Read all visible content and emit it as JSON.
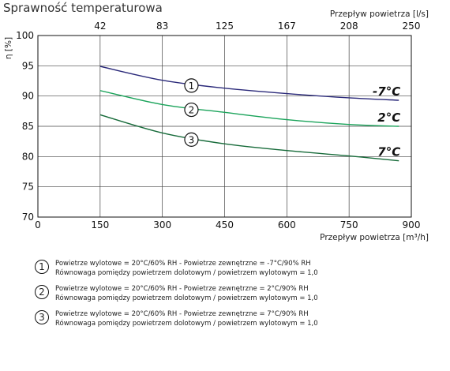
{
  "chart_data": {
    "type": "line",
    "title": "Sprawność temperaturowa",
    "ylabel": "η [%]",
    "xlabel": "Przepływ powietrza [m³/h]",
    "x2label": "Przepływ powietrza [l/s]",
    "xlim": [
      0,
      900
    ],
    "ylim": [
      70,
      100
    ],
    "x_ticks": [
      "0",
      "150",
      "300",
      "450",
      "600",
      "750",
      "900"
    ],
    "y_ticks": [
      "70",
      "75",
      "80",
      "85",
      "90",
      "95",
      "100"
    ],
    "x2_ticks": [
      "42",
      "83",
      "125",
      "167",
      "208",
      "250"
    ],
    "grid": true,
    "series": [
      {
        "name": "-7°C",
        "marker": "1",
        "color": "#2b2a7a",
        "x": [
          150,
          300,
          450,
          600,
          750,
          870
        ],
        "y": [
          94.9,
          92.6,
          91.3,
          90.4,
          89.7,
          89.3
        ]
      },
      {
        "name": "2°C",
        "marker": "2",
        "color": "#1aa35a",
        "x": [
          150,
          300,
          450,
          600,
          750,
          870
        ],
        "y": [
          90.9,
          88.6,
          87.3,
          86.1,
          85.3,
          85.0
        ]
      },
      {
        "name": "7°C",
        "marker": "3",
        "color": "#176b3a",
        "x": [
          150,
          300,
          450,
          600,
          750,
          870
        ],
        "y": [
          86.9,
          83.9,
          82.1,
          81.0,
          80.1,
          79.3
        ]
      }
    ]
  },
  "legend": [
    {
      "num": "1",
      "line1": "Powietrze wylotowe = 20°C/60% RH - Powietrze zewnętrzne = -7°C/90% RH",
      "line2": "Równowaga pomiędzy powietrzem dolotowym / powietrzem wylotowym = 1,0"
    },
    {
      "num": "2",
      "line1": "Powietrze wylotowe = 20°C/60% RH - Powietrze zewnętrzne = 2°C/90% RH",
      "line2": "Równowaga pomiędzy powietrzem dolotowym / powietrzem wylotowym = 1,0"
    },
    {
      "num": "3",
      "line1": "Powietrze wylotowe = 20°C/60% RH - Powietrze zewnętrzne = 7°C/90% RH",
      "line2": "Równowaga pomiędzy powietrzem dolotowym / powietrzem wylotowym = 1,0"
    }
  ]
}
